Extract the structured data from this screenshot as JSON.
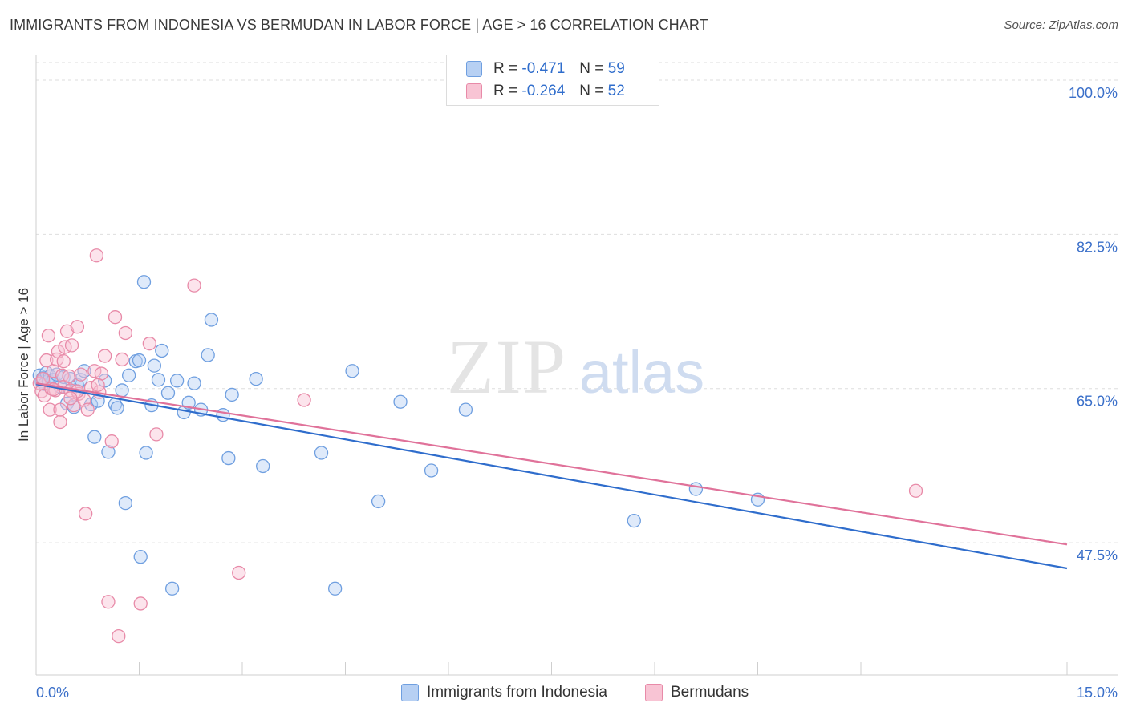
{
  "header": {
    "title": "IMMIGRANTS FROM INDONESIA VS BERMUDAN IN LABOR FORCE | AGE > 16 CORRELATION CHART",
    "source": "Source: ZipAtlas.com"
  },
  "watermark": {
    "zip": "ZIP",
    "atlas": "atlas"
  },
  "legend": {
    "series": [
      {
        "r_label": "R =",
        "r_value": "-0.471",
        "n_label": "N =",
        "n_value": "59",
        "color": "#6f9fe0",
        "fill": "#b7d0f3"
      },
      {
        "r_label": "R =",
        "r_value": "-0.264",
        "n_label": "N =",
        "n_value": "52",
        "color": "#e88aa8",
        "fill": "#f8c4d4"
      }
    ]
  },
  "chart_data": {
    "type": "scatter",
    "title": "IMMIGRANTS FROM INDONESIA VS BERMUDAN IN LABOR FORCE | AGE > 16 CORRELATION CHART",
    "xlabel": "",
    "ylabel": "In Labor Force | Age > 16",
    "xlim": [
      0,
      15
    ],
    "ylim": [
      32.5,
      102
    ],
    "x_tick_labels": [
      "0.0%",
      "15.0%"
    ],
    "y_ticks": [
      47.5,
      65.0,
      82.5,
      100.0
    ],
    "y_tick_labels": [
      "47.5%",
      "65.0%",
      "82.5%",
      "100.0%"
    ],
    "grid": true,
    "series": [
      {
        "name": "Immigrants from Indonesia",
        "color": "#2f6dcc",
        "fill": "#b7d0f3",
        "stroke": "#6f9fe0",
        "trend": {
          "x": [
            0,
            15
          ],
          "y": [
            65.5,
            44.6
          ]
        },
        "points": [
          [
            0.05,
            66.5
          ],
          [
            0.08,
            65.8
          ],
          [
            0.1,
            66.2
          ],
          [
            0.12,
            65.5
          ],
          [
            0.15,
            66.8
          ],
          [
            0.18,
            65.9
          ],
          [
            0.2,
            66.4
          ],
          [
            0.25,
            66.0
          ],
          [
            0.3,
            66.6
          ],
          [
            0.35,
            65.2
          ],
          [
            0.4,
            66.3
          ],
          [
            0.45,
            63.3
          ],
          [
            0.5,
            66.1
          ],
          [
            0.55,
            62.9
          ],
          [
            0.6,
            65.4
          ],
          [
            0.65,
            66.0
          ],
          [
            0.7,
            67.0
          ],
          [
            0.8,
            63.2
          ],
          [
            0.85,
            59.5
          ],
          [
            0.9,
            63.6
          ],
          [
            1.0,
            65.9
          ],
          [
            1.05,
            57.8
          ],
          [
            1.15,
            63.2
          ],
          [
            1.18,
            62.8
          ],
          [
            1.25,
            64.8
          ],
          [
            1.3,
            52.0
          ],
          [
            1.35,
            66.5
          ],
          [
            1.45,
            68.1
          ],
          [
            1.5,
            68.2
          ],
          [
            1.52,
            45.9
          ],
          [
            1.57,
            77.1
          ],
          [
            1.6,
            57.7
          ],
          [
            1.68,
            63.1
          ],
          [
            1.72,
            67.6
          ],
          [
            1.78,
            66.0
          ],
          [
            1.83,
            69.3
          ],
          [
            1.92,
            64.5
          ],
          [
            1.98,
            42.3
          ],
          [
            2.05,
            65.9
          ],
          [
            2.15,
            62.3
          ],
          [
            2.22,
            63.4
          ],
          [
            2.3,
            65.6
          ],
          [
            2.4,
            62.6
          ],
          [
            2.5,
            68.8
          ],
          [
            2.55,
            72.8
          ],
          [
            2.72,
            62.0
          ],
          [
            2.8,
            57.1
          ],
          [
            2.85,
            64.3
          ],
          [
            3.2,
            66.1
          ],
          [
            3.3,
            56.2
          ],
          [
            4.15,
            57.7
          ],
          [
            4.35,
            42.3
          ],
          [
            4.6,
            67.0
          ],
          [
            4.98,
            52.2
          ],
          [
            5.3,
            63.5
          ],
          [
            5.75,
            55.7
          ],
          [
            6.25,
            62.6
          ],
          [
            8.7,
            50.0
          ],
          [
            9.6,
            53.6
          ],
          [
            10.5,
            52.4
          ]
        ]
      },
      {
        "name": "Bermudans",
        "color": "#e0729a",
        "fill": "#f8c4d4",
        "stroke": "#e88aa8",
        "trend": {
          "x": [
            0,
            15
          ],
          "y": [
            65.6,
            47.3
          ]
        },
        "points": [
          [
            0.05,
            65.6
          ],
          [
            0.08,
            64.7
          ],
          [
            0.1,
            66.1
          ],
          [
            0.12,
            64.2
          ],
          [
            0.15,
            68.2
          ],
          [
            0.18,
            71.0
          ],
          [
            0.2,
            62.6
          ],
          [
            0.22,
            65.0
          ],
          [
            0.25,
            67.0
          ],
          [
            0.28,
            64.8
          ],
          [
            0.3,
            68.3
          ],
          [
            0.32,
            69.2
          ],
          [
            0.35,
            61.2
          ],
          [
            0.38,
            66.5
          ],
          [
            0.4,
            65.2
          ],
          [
            0.42,
            69.7
          ],
          [
            0.45,
            71.5
          ],
          [
            0.48,
            66.4
          ],
          [
            0.5,
            64.8
          ],
          [
            0.52,
            69.9
          ],
          [
            0.55,
            63.1
          ],
          [
            0.6,
            72.0
          ],
          [
            0.62,
            64.4
          ],
          [
            0.65,
            66.6
          ],
          [
            0.7,
            63.7
          ],
          [
            0.72,
            50.8
          ],
          [
            0.75,
            62.6
          ],
          [
            0.8,
            65.1
          ],
          [
            0.85,
            67.0
          ],
          [
            0.88,
            80.1
          ],
          [
            0.92,
            64.6
          ],
          [
            0.95,
            66.7
          ],
          [
            1.0,
            68.7
          ],
          [
            1.05,
            40.8
          ],
          [
            1.1,
            59.0
          ],
          [
            1.15,
            73.1
          ],
          [
            1.2,
            36.9
          ],
          [
            1.25,
            68.3
          ],
          [
            1.3,
            71.3
          ],
          [
            1.52,
            40.6
          ],
          [
            1.65,
            70.1
          ],
          [
            1.75,
            59.8
          ],
          [
            2.3,
            76.7
          ],
          [
            2.95,
            44.1
          ],
          [
            3.9,
            63.7
          ],
          [
            12.8,
            53.4
          ],
          [
            0.4,
            68.1
          ],
          [
            0.6,
            64.7
          ],
          [
            0.25,
            64.9
          ],
          [
            0.5,
            63.9
          ],
          [
            0.9,
            65.4
          ],
          [
            0.35,
            62.6
          ]
        ]
      }
    ]
  },
  "bottom_legend": [
    {
      "label": "Immigrants from Indonesia",
      "fill": "#b7d0f3",
      "stroke": "#6f9fe0"
    },
    {
      "label": "Bermudans",
      "fill": "#f8c4d4",
      "stroke": "#e88aa8"
    }
  ]
}
